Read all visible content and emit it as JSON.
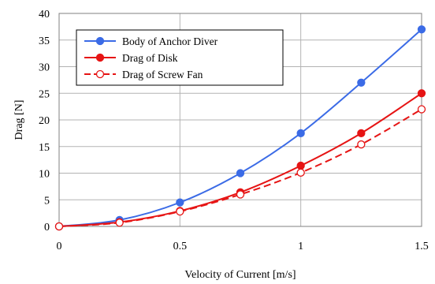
{
  "chart_data": {
    "type": "line",
    "title": "",
    "xlabel": "Velocity of Current [m/s]",
    "ylabel": "Drag [N]",
    "xlim": [
      0,
      1.5
    ],
    "ylim": [
      0,
      40
    ],
    "xticks": [
      "0",
      "0.5",
      "1",
      "1.5"
    ],
    "yticks": [
      "0",
      "5",
      "10",
      "15",
      "20",
      "25",
      "30",
      "35",
      "40"
    ],
    "grid": true,
    "legend_position": "top-left",
    "x": [
      0,
      0.25,
      0.5,
      0.75,
      1.0,
      1.25,
      1.5
    ],
    "series": [
      {
        "name": "Body of Anchor Diver",
        "values": [
          0,
          1.2,
          4.5,
          10,
          17.5,
          27,
          37
        ],
        "color": "#3b6be6",
        "line": "solid",
        "marker": "filled-circle"
      },
      {
        "name": "Drag of Disk",
        "values": [
          0,
          0.8,
          2.9,
          6.4,
          11.4,
          17.5,
          25
        ],
        "color": "#e61414",
        "line": "solid",
        "marker": "filled-circle"
      },
      {
        "name": "Drag of Screw Fan",
        "values": [
          0,
          0.7,
          2.8,
          6.0,
          10.1,
          15.4,
          22
        ],
        "color": "#e61414",
        "line": "dashed",
        "marker": "open-circle"
      }
    ]
  }
}
